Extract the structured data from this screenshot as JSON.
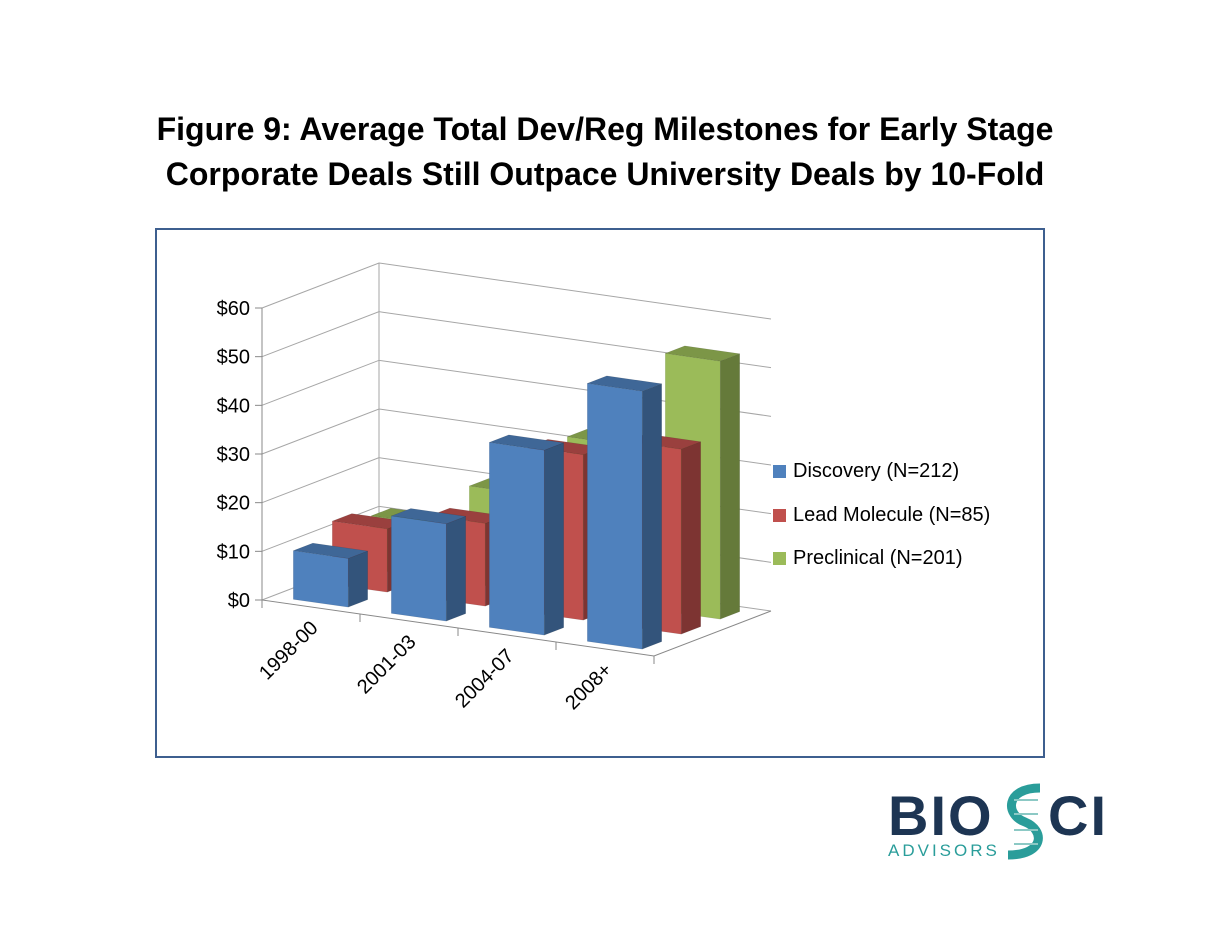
{
  "title_line1": "Figure 9:  Average Total Dev/Reg Milestones for Early Stage",
  "title_line2": "Corporate Deals Still Outpace University Deals by 10-Fold",
  "chart_data": {
    "type": "bar",
    "subtype": "3d-column",
    "title": "Figure 9:  Average Total Dev/Reg Milestones for Early Stage Corporate Deals Still Outpace University Deals by 10-Fold",
    "categories": [
      "1998-00",
      "2001-03",
      "2004-07",
      "2008+"
    ],
    "series": [
      {
        "name": "Discovery (N=212)",
        "color": "#4f81bd",
        "values": [
          10,
          20,
          38,
          53
        ]
      },
      {
        "name": "Lead Molecule (N=85)",
        "color": "#c0504d",
        "values": [
          13,
          17,
          34,
          38
        ]
      },
      {
        "name": "Preclinical (N=201)",
        "color": "#9bbb59",
        "values": [
          11,
          20,
          33,
          53
        ]
      }
    ],
    "yticks": [
      "$0",
      "$10",
      "$20",
      "$30",
      "$40",
      "$50",
      "$60"
    ],
    "ylim": [
      0,
      60
    ],
    "xlabel": "",
    "ylabel": "",
    "grid": true,
    "legend": "right"
  },
  "logo": {
    "text": "BIOSCI",
    "subtext": "ADVISORS",
    "navy": "#1d3553",
    "teal": "#2a9d9a"
  }
}
